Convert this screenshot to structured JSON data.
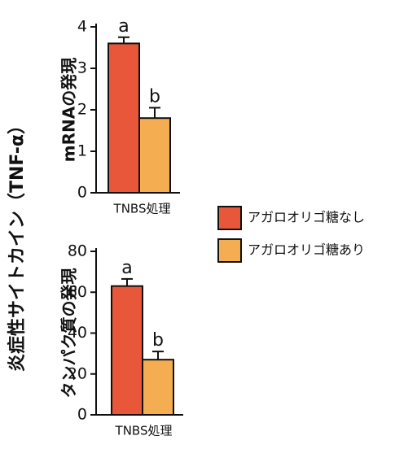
{
  "ylabel": "炎症性サイトカイン（TNF-α）",
  "chart_data": [
    {
      "type": "bar",
      "ylabel": "mRNAの発現",
      "categories": [
        "TNBS処理"
      ],
      "ylim": [
        0,
        4
      ],
      "yticks": [
        0,
        1,
        2,
        3,
        4
      ],
      "series": [
        {
          "name": "アガロオリゴ糖なし",
          "color": "#e8573a",
          "values": [
            3.6
          ],
          "errors": [
            0.15
          ],
          "labels": [
            "a"
          ]
        },
        {
          "name": "アガロオリゴ糖あり",
          "color": "#f5ad52",
          "values": [
            1.8
          ],
          "errors": [
            0.25
          ],
          "labels": [
            "b"
          ]
        }
      ]
    },
    {
      "type": "bar",
      "ylabel": "タンパク質の発現",
      "categories": [
        "TNBS処理"
      ],
      "ylim": [
        0,
        80
      ],
      "yticks": [
        0,
        20,
        40,
        60,
        80
      ],
      "series": [
        {
          "color": "#e8573a",
          "values": [
            63
          ],
          "errors": [
            3.5
          ],
          "labels": [
            "a"
          ]
        },
        {
          "color": "#f5ad52",
          "values": [
            27
          ],
          "errors": [
            4
          ],
          "labels": [
            "b"
          ]
        }
      ]
    }
  ]
}
